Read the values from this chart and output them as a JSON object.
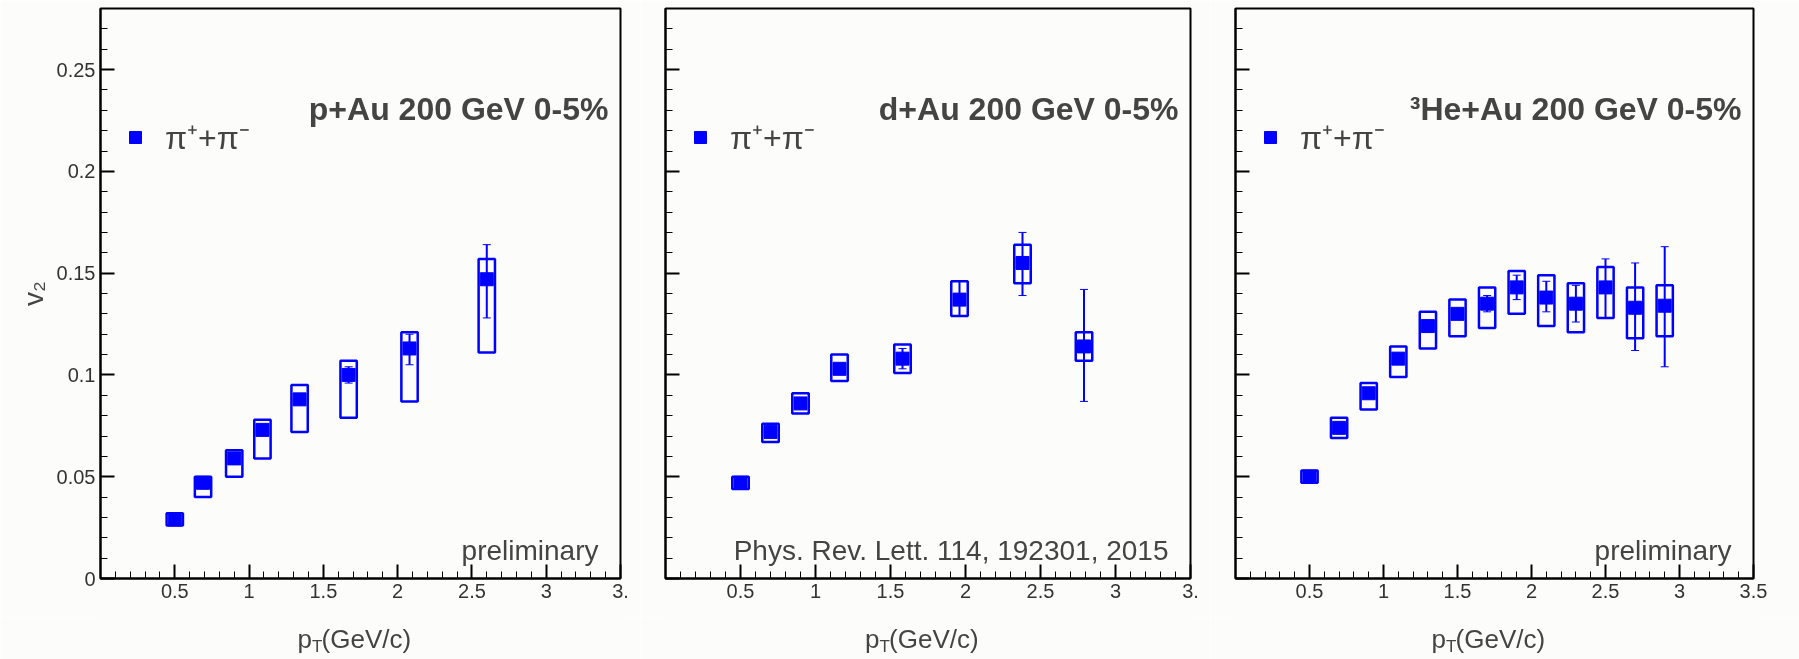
{
  "chart_data": [
    {
      "type": "scatter",
      "title": "p+Au 200 GeV 0-5%",
      "xlabel": "p$_{T}$(GeV/c)",
      "ylabel": "v₂",
      "xlim": [
        0,
        3.5
      ],
      "ylim": [
        0,
        0.28
      ],
      "xticks": [
        0.5,
        1,
        1.5,
        2,
        2.5,
        3,
        {
          "value": 3.5,
          "label": "3."
        }
      ],
      "yticks": [
        0,
        0.05,
        0.1,
        0.15,
        0.2,
        0.25
      ],
      "legend": "top left",
      "marker": "square",
      "grid": false,
      "annotations": [
        "preliminary"
      ],
      "series": [
        {
          "type": "bar",
          "color": "#0000ff",
          "x": [
            0.5,
            0.69,
            0.9,
            1.09,
            1.34,
            1.67,
            2.08,
            2.6
          ],
          "base": [
            0.026,
            0.04,
            0.05,
            0.059,
            0.072,
            0.079,
            0.087,
            0.111
          ],
          "values": [
            0.006,
            0.01,
            0.013,
            0.019,
            0.023,
            0.028,
            0.034,
            0.046
          ]
        },
        {
          "name": "π⁺+π⁻",
          "color": "#0000ff",
          "x": [
            0.5,
            0.69,
            0.9,
            1.09,
            1.34,
            1.67,
            2.08,
            2.6
          ],
          "values": [
            0.029,
            0.047,
            0.059,
            0.073,
            0.088,
            0.1,
            0.113,
            0.147
          ],
          "errors": [
            null,
            null,
            null,
            null,
            null,
            [
              0.096,
              0.104
            ],
            [
              0.105,
              0.12
            ],
            [
              0.128,
              0.164
            ]
          ]
        }
      ]
    },
    {
      "type": "scatter",
      "title": "d+Au 200 GeV 0-5%",
      "xlabel": "p$_{T}$(GeV/c)",
      "xlim": [
        0,
        3.5
      ],
      "ylim": [
        0,
        0.28
      ],
      "xticks": [
        0.5,
        1,
        1.5,
        2,
        2.5,
        3,
        {
          "value": 3.5,
          "label": "3."
        }
      ],
      "yticks": [
        0,
        0.05,
        0.1,
        0.15,
        0.2,
        0.25
      ],
      "tick_labels": "x",
      "legend": "top left",
      "marker": "square",
      "grid": false,
      "annotations": [
        "Phys. Rev. Lett. 114, 192301, 2015"
      ],
      "series": [
        {
          "type": "bar",
          "color": "#0000ff",
          "x": [
            0.5,
            0.7,
            0.9,
            1.16,
            1.58,
            1.96,
            2.38,
            2.79
          ],
          "base": [
            0.044,
            0.067,
            0.081,
            0.097,
            0.101,
            0.129,
            0.145,
            0.107
          ],
          "values": [
            0.006,
            0.009,
            0.01,
            0.013,
            0.014,
            0.017,
            0.019,
            0.014
          ]
        },
        {
          "name": "π⁺+π⁻",
          "color": "#0000ff",
          "x": [
            0.5,
            0.7,
            0.9,
            1.16,
            1.58,
            1.96,
            2.38,
            2.79
          ],
          "values": [
            0.047,
            0.072,
            0.086,
            0.103,
            0.108,
            0.137,
            0.155,
            0.114
          ],
          "errors": [
            null,
            null,
            null,
            null,
            [
              0.103,
              0.113
            ],
            [
              0.129,
              0.146
            ],
            [
              0.139,
              0.17
            ],
            [
              0.087,
              0.142
            ]
          ]
        }
      ]
    },
    {
      "type": "scatter",
      "title": "³He+Au 200 GeV 0-5%",
      "xlabel": "p$_{T}$(GeV/c)",
      "xlim": [
        0,
        3.5
      ],
      "ylim": [
        0,
        0.28
      ],
      "xticks": [
        0.5,
        1,
        1.5,
        2,
        2.5,
        3,
        3.5
      ],
      "yticks": [
        0,
        0.05,
        0.1,
        0.15,
        0.2,
        0.25
      ],
      "tick_labels": "x",
      "legend": "top left",
      "marker": "square",
      "grid": false,
      "annotations": [
        "preliminary"
      ],
      "series": [
        {
          "type": "bar",
          "color": "#0000ff",
          "x": [
            0.5,
            0.7,
            0.9,
            1.1,
            1.3,
            1.5,
            1.7,
            1.9,
            2.1,
            2.3,
            2.5,
            2.7,
            2.9
          ],
          "base": [
            0.047,
            0.069,
            0.083,
            0.099,
            0.113,
            0.119,
            0.123,
            0.13,
            0.124,
            0.121,
            0.128,
            0.118,
            0.119
          ],
          "values": [
            0.006,
            0.01,
            0.013,
            0.015,
            0.018,
            0.018,
            0.02,
            0.021,
            0.025,
            0.024,
            0.025,
            0.025,
            0.025
          ]
        },
        {
          "name": "π⁺+π⁻",
          "color": "#0000ff",
          "x": [
            0.5,
            0.7,
            0.9,
            1.1,
            1.3,
            1.5,
            1.7,
            1.9,
            2.1,
            2.3,
            2.5,
            2.7,
            2.9
          ],
          "values": [
            0.05,
            0.074,
            0.091,
            0.108,
            0.124,
            0.13,
            0.135,
            0.143,
            0.138,
            0.135,
            0.143,
            0.133,
            0.134
          ],
          "errors": [
            null,
            null,
            null,
            null,
            null,
            null,
            [
              0.131,
              0.139
            ],
            [
              0.137,
              0.149
            ],
            [
              0.131,
              0.146
            ],
            [
              0.126,
              0.144
            ],
            [
              0.128,
              0.157
            ],
            [
              0.112,
              0.155
            ],
            [
              0.104,
              0.163
            ]
          ]
        }
      ]
    }
  ]
}
